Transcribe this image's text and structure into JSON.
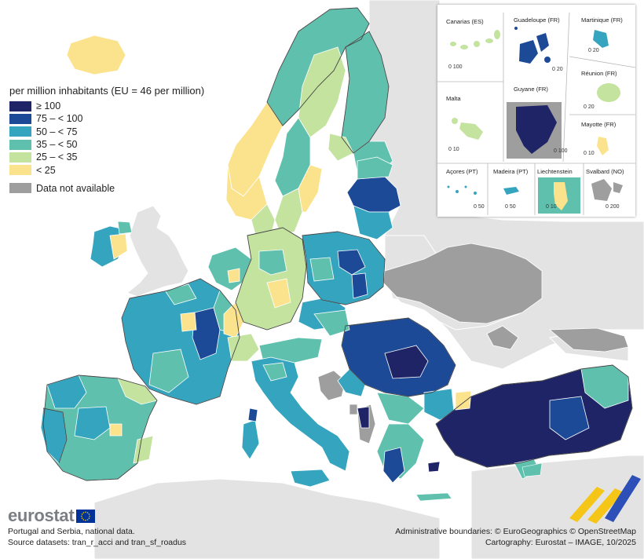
{
  "legend": {
    "title": "per million inhabitants (EU = 46 per million)",
    "items": [
      {
        "label": "≥ 100",
        "color": "#1f2466"
      },
      {
        "label": "75 – < 100",
        "color": "#1c4a96"
      },
      {
        "label": "50 – < 75",
        "color": "#35a4bf"
      },
      {
        "label": "35 – < 50",
        "color": "#5fc1ad"
      },
      {
        "label": "25 – < 35",
        "color": "#c3e39f"
      },
      {
        "label": "< 25",
        "color": "#fbe38e"
      }
    ],
    "not_available": {
      "label": "Data not available",
      "color": "#9e9e9e"
    }
  },
  "insets": {
    "canarias": {
      "label": "Canarias (ES)",
      "scale": "0  100"
    },
    "guadeloupe": {
      "label": "Guadeloupe (FR)",
      "scale": "0  20"
    },
    "martinique": {
      "label": "Martinique (FR)",
      "scale": "0  20"
    },
    "reunion": {
      "label": "Réunion (FR)",
      "scale": "0  20"
    },
    "malta": {
      "label": "Malta",
      "scale": "0  10"
    },
    "guyane": {
      "label": "Guyane (FR)",
      "scale": "0  100"
    },
    "mayotte": {
      "label": "Mayotte (FR)",
      "scale": "0 10"
    },
    "acores": {
      "label": "Açores (PT)",
      "scale": "0 50"
    },
    "madeira": {
      "label": "Madeira (PT)",
      "scale": "0  50"
    },
    "liechtenstein": {
      "label": "Liechtenstein",
      "scale": "0  10"
    },
    "svalbard": {
      "label": "Svalbard (NO)",
      "scale": "0  200"
    }
  },
  "branding": {
    "logo": "eurostat"
  },
  "footer": {
    "left_line1": "Portugal and Serbia, national data.",
    "left_line2": "Source datasets: tran_r_acci and tran_sf_roadus",
    "right_line1": "Administrative boundaries: © EuroGeographics © OpenStreetMap",
    "right_line2": "Cartography: Eurostat – IMAGE, 10/2025"
  },
  "colors": {
    "sea": "#ffffff",
    "non_eu_land": "#e3e3e3",
    "not_available": "#9e9e9e",
    "border": "#444444",
    "accent_yellow": "#f5c518",
    "accent_blue": "#2c4fb8"
  }
}
